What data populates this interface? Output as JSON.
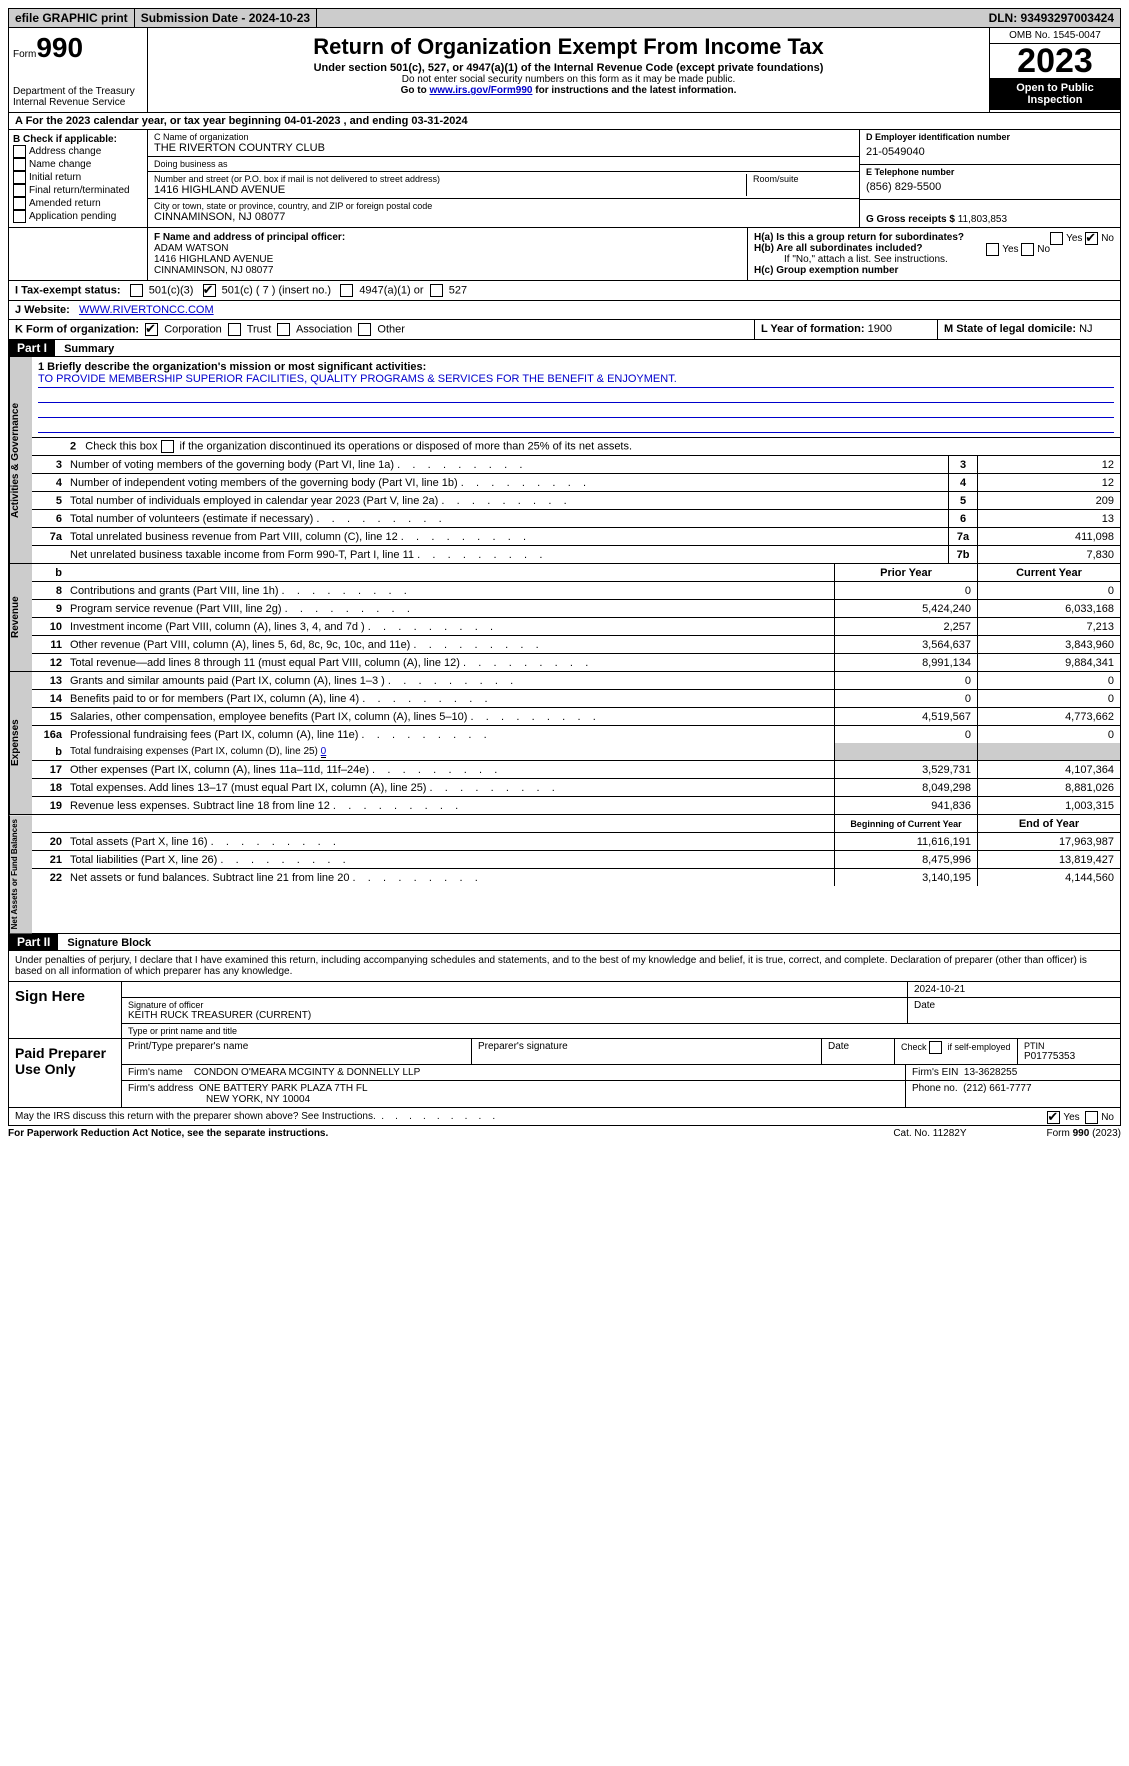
{
  "colors": {
    "bg": "#ffffff",
    "text": "#000000",
    "gray": "#cccccc",
    "black": "#000000",
    "link": "#0000cc"
  },
  "topbar": {
    "efile": "efile GRAPHIC print",
    "submission": "Submission Date - 2024-10-23",
    "dln": "DLN: 93493297003424"
  },
  "header": {
    "form_prefix": "Form",
    "form_number": "990",
    "dept": "Department of the Treasury",
    "irs": "Internal Revenue Service",
    "title": "Return of Organization Exempt From Income Tax",
    "subtitle": "Under section 501(c), 527, or 4947(a)(1) of the Internal Revenue Code (except private foundations)",
    "note1": "Do not enter social security numbers on this form as it may be made public.",
    "note2_pre": "Go to ",
    "note2_link": "www.irs.gov/Form990",
    "note2_post": " for instructions and the latest information.",
    "omb": "OMB No. 1545-0047",
    "year": "2023",
    "open": "Open to Public Inspection"
  },
  "section_a": "A For the 2023 calendar year, or tax year beginning 04-01-2023    , and ending 03-31-2024",
  "box_b": {
    "title": "B Check if applicable:",
    "items": [
      "Address change",
      "Name change",
      "Initial return",
      "Final return/terminated",
      "Amended return",
      "Application pending"
    ]
  },
  "box_c": {
    "name_label": "C Name of organization",
    "name": "THE RIVERTON COUNTRY CLUB",
    "dba_label": "Doing business as",
    "dba": "",
    "street_label": "Number and street (or P.O. box if mail is not delivered to street address)",
    "room_label": "Room/suite",
    "street": "1416 HIGHLAND AVENUE",
    "city_label": "City or town, state or province, country, and ZIP or foreign postal code",
    "city": "CINNAMINSON, NJ  08077"
  },
  "box_d": {
    "label": "D Employer identification number",
    "val": "21-0549040"
  },
  "box_e": {
    "label": "E Telephone number",
    "val": "(856) 829-5500"
  },
  "box_g": {
    "label": "G Gross receipts $",
    "val": "11,803,853"
  },
  "box_f": {
    "label": "F  Name and address of principal officer:",
    "name": "ADAM WATSON",
    "street": "1416 HIGHLAND AVENUE",
    "city": "CINNAMINSON, NJ  08077"
  },
  "box_h": {
    "a_label": "H(a)  Is this a group return for subordinates?",
    "a_yes": "Yes",
    "a_no": "No",
    "b_label": "H(b)  Are all subordinates included?",
    "b_yes": "Yes",
    "b_no": "No",
    "b_note": "If \"No,\" attach a list. See instructions.",
    "c_label": "H(c)  Group exemption number",
    "c_val": ""
  },
  "row_i": {
    "label": "I   Tax-exempt status:",
    "o1": "501(c)(3)",
    "o2": "501(c) ( 7 ) (insert no.)",
    "o3": "4947(a)(1) or",
    "o4": "527"
  },
  "row_j": {
    "label": "J   Website:",
    "val": "WWW.RIVERTONCC.COM"
  },
  "row_k": {
    "label": "K Form of organization:",
    "o1": "Corporation",
    "o2": "Trust",
    "o3": "Association",
    "o4": "Other"
  },
  "row_l": {
    "label": "L Year of formation:",
    "val": "1900"
  },
  "row_m": {
    "label": "M State of legal domicile:",
    "val": "NJ"
  },
  "part1": {
    "tag": "Part I",
    "title": "Summary"
  },
  "mission": {
    "label": "1   Briefly describe the organization's mission or most significant activities:",
    "text": "TO PROVIDE MEMBERSHIP SUPERIOR FACILITIES, QUALITY PROGRAMS & SERVICES FOR THE BENEFIT & ENJOYMENT."
  },
  "line2": "2    Check this box      if the organization discontinued its operations or disposed of more than 25% of its net assets.",
  "governance": [
    {
      "n": "3",
      "label": "Number of voting members of the governing body (Part VI, line 1a)",
      "mini": "3",
      "v": "12"
    },
    {
      "n": "4",
      "label": "Number of independent voting members of the governing body (Part VI, line 1b)",
      "mini": "4",
      "v": "12"
    },
    {
      "n": "5",
      "label": "Total number of individuals employed in calendar year 2023 (Part V, line 2a)",
      "mini": "5",
      "v": "209"
    },
    {
      "n": "6",
      "label": "Total number of volunteers (estimate if necessary)",
      "mini": "6",
      "v": "13"
    },
    {
      "n": "7a",
      "label": "Total unrelated business revenue from Part VIII, column (C), line 12",
      "mini": "7a",
      "v": "411,098"
    },
    {
      "n": "",
      "label": "Net unrelated business taxable income from Form 990-T, Part I, line 11",
      "mini": "7b",
      "v": "7,830"
    }
  ],
  "b_row": "b",
  "col_hdr": {
    "prior": "Prior Year",
    "current": "Current Year"
  },
  "revenue": [
    {
      "n": "8",
      "label": "Contributions and grants (Part VIII, line 1h)",
      "p": "0",
      "c": "0"
    },
    {
      "n": "9",
      "label": "Program service revenue (Part VIII, line 2g)",
      "p": "5,424,240",
      "c": "6,033,168"
    },
    {
      "n": "10",
      "label": "Investment income (Part VIII, column (A), lines 3, 4, and 7d )",
      "p": "2,257",
      "c": "7,213"
    },
    {
      "n": "11",
      "label": "Other revenue (Part VIII, column (A), lines 5, 6d, 8c, 9c, 10c, and 11e)",
      "p": "3,564,637",
      "c": "3,843,960"
    },
    {
      "n": "12",
      "label": "Total revenue—add lines 8 through 11 (must equal Part VIII, column (A), line 12)",
      "p": "8,991,134",
      "c": "9,884,341"
    }
  ],
  "expenses": [
    {
      "n": "13",
      "label": "Grants and similar amounts paid (Part IX, column (A), lines 1–3 )",
      "p": "0",
      "c": "0"
    },
    {
      "n": "14",
      "label": "Benefits paid to or for members (Part IX, column (A), line 4)",
      "p": "0",
      "c": "0"
    },
    {
      "n": "15",
      "label": "Salaries, other compensation, employee benefits (Part IX, column (A), lines 5–10)",
      "p": "4,519,567",
      "c": "4,773,662"
    },
    {
      "n": "16a",
      "label": "Professional fundraising fees (Part IX, column (A), line 11e)",
      "p": "0",
      "c": "0"
    }
  ],
  "line16b": {
    "n": "b",
    "label": "Total fundraising expenses (Part IX, column (D), line 25)",
    "v": "0"
  },
  "expenses2": [
    {
      "n": "17",
      "label": "Other expenses (Part IX, column (A), lines 11a–11d, 11f–24e)",
      "p": "3,529,731",
      "c": "4,107,364"
    },
    {
      "n": "18",
      "label": "Total expenses. Add lines 13–17 (must equal Part IX, column (A), line 25)",
      "p": "8,049,298",
      "c": "8,881,026"
    },
    {
      "n": "19",
      "label": "Revenue less expenses. Subtract line 18 from line 12",
      "p": "941,836",
      "c": "1,003,315"
    }
  ],
  "na_hdr": {
    "begin": "Beginning of Current Year",
    "end": "End of Year"
  },
  "netassets": [
    {
      "n": "20",
      "label": "Total assets (Part X, line 16)",
      "p": "11,616,191",
      "c": "17,963,987"
    },
    {
      "n": "21",
      "label": "Total liabilities (Part X, line 26)",
      "p": "8,475,996",
      "c": "13,819,427"
    },
    {
      "n": "22",
      "label": "Net assets or fund balances. Subtract line 21 from line 20",
      "p": "3,140,195",
      "c": "4,144,560"
    }
  ],
  "vtabs": {
    "gov": "Activities & Governance",
    "rev": "Revenue",
    "exp": "Expenses",
    "na": "Net Assets or Fund Balances"
  },
  "part2": {
    "tag": "Part II",
    "title": "Signature Block"
  },
  "penalties": "Under penalties of perjury, I declare that I have examined this return, including accompanying schedules and statements, and to the best of my knowledge and belief, it is true, correct, and complete. Declaration of preparer (other than officer) is based on all information of which preparer has any knowledge.",
  "sign_here": "Sign Here",
  "sign": {
    "date": "2024-10-21",
    "sig_label": "Signature of officer",
    "date_label": "Date",
    "officer": "KEITH RUCK  TREASURER (CURRENT)",
    "type_label": "Type or print name and title"
  },
  "paid": "Paid Preparer Use Only",
  "preparer": {
    "name_label": "Print/Type preparer's name",
    "sig_label": "Preparer's signature",
    "date_label": "Date",
    "self_label": "Check       if self-employed",
    "ptin_label": "PTIN",
    "ptin": "P01775353",
    "firm_name_label": "Firm's name",
    "firm_name": "CONDON O'MEARA MCGINTY & DONNELLY LLP",
    "firm_ein_label": "Firm's EIN",
    "firm_ein": "13-3628255",
    "firm_addr_label": "Firm's address",
    "firm_addr1": "ONE BATTERY PARK PLAZA 7TH FL",
    "firm_addr2": "NEW YORK, NY  10004",
    "phone_label": "Phone no.",
    "phone": "(212) 661-7777"
  },
  "discuss": {
    "label": "May the IRS discuss this return with the preparer shown above? See Instructions.",
    "yes": "Yes",
    "no": "No"
  },
  "footer": {
    "left": "For Paperwork Reduction Act Notice, see the separate instructions.",
    "mid": "Cat. No. 11282Y",
    "right_pre": "Form ",
    "right_b": "990",
    "right_post": " (2023)"
  }
}
